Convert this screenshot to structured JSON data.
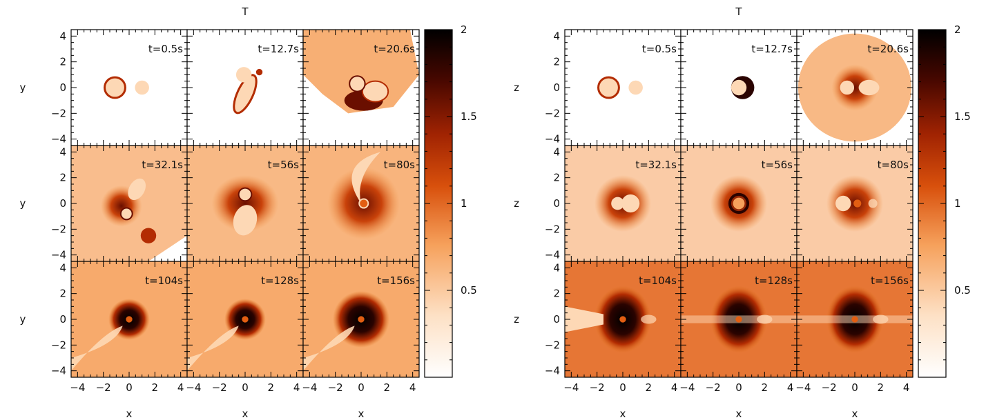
{
  "figure_left": {
    "title": "T",
    "xlabel": "x",
    "ylabel": "y",
    "panel_labels": [
      "t=0.5s",
      "t=12.7s",
      "t=20.6s",
      "t=32.1s",
      "t=56s",
      "t=80s",
      "t=104s",
      "t=128s",
      "t=156s"
    ]
  },
  "figure_right": {
    "title": "T",
    "xlabel": "x",
    "ylabel": "z",
    "panel_labels": [
      "t=0.5s",
      "t=12.7s",
      "t=20.6s",
      "t=32.1s",
      "t=56s",
      "t=80s",
      "t=104s",
      "t=128s",
      "t=156s"
    ]
  },
  "colormap": [
    "#ffffff",
    "#fdd8b5",
    "#f6a15c",
    "#e25e12",
    "#b32c02",
    "#6a0f00",
    "#2a0300",
    "#000000"
  ],
  "chart_data": [
    {
      "type": "heatmap",
      "title": "T",
      "xlabel": "x",
      "ylabel": "y",
      "xlim": [
        -4.5,
        4.5
      ],
      "ylim": [
        -4.5,
        4.5
      ],
      "grid": "3x3",
      "panels": [
        "t=0.5s",
        "t=12.7s",
        "t=20.6s",
        "t=32.1s",
        "t=56s",
        "t=80s",
        "t=104s",
        "t=128s",
        "t=156s"
      ],
      "x_ticks": [
        -4,
        -2,
        0,
        2,
        4
      ],
      "y_ticks": [
        -4,
        -2,
        0,
        2,
        4
      ],
      "colorbar": {
        "min": 0,
        "max": 2,
        "ticks": [
          0.5,
          1,
          1.5,
          2
        ]
      }
    },
    {
      "type": "heatmap",
      "title": "T",
      "xlabel": "x",
      "ylabel": "z",
      "xlim": [
        -4.5,
        4.5
      ],
      "ylim": [
        -4.5,
        4.5
      ],
      "grid": "3x3",
      "panels": [
        "t=0.5s",
        "t=12.7s",
        "t=20.6s",
        "t=32.1s",
        "t=56s",
        "t=80s",
        "t=104s",
        "t=128s",
        "t=156s"
      ],
      "x_ticks": [
        -4,
        -2,
        0,
        2,
        4
      ],
      "y_ticks": [
        -4,
        -2,
        0,
        2,
        4
      ],
      "colorbar": {
        "min": 0,
        "max": 2,
        "ticks": [
          0.5,
          1,
          1.5,
          2
        ]
      }
    }
  ]
}
